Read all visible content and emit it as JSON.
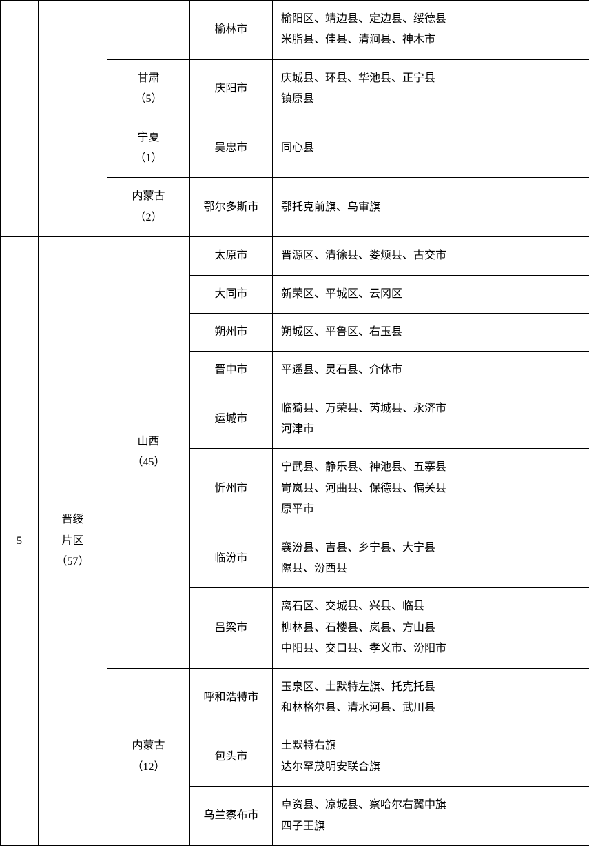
{
  "rows": [
    {
      "col1": "",
      "col1_rowspan": 4,
      "col2": "",
      "col2_rowspan": 4,
      "col3": "",
      "col3_rowspan": 1,
      "city": "榆林市",
      "counties": "榆阳区、靖边县、定边县、绥德县\n米脂县、佳县、清涧县、神木市"
    },
    {
      "col3": "甘肃\n（5）",
      "col3_rowspan": 1,
      "city": "庆阳市",
      "counties": "庆城县、环县、华池县、正宁县\n镇原县"
    },
    {
      "col3": "宁夏\n（1）",
      "col3_rowspan": 1,
      "city": "吴忠市",
      "counties": "同心县"
    },
    {
      "col3": "内蒙古\n（2）",
      "col3_rowspan": 1,
      "city": "鄂尔多斯市",
      "counties": "鄂托克前旗、乌审旗"
    },
    {
      "col1": "5",
      "col1_rowspan": 11,
      "col2": "晋绥\n片区\n（57）",
      "col2_rowspan": 11,
      "col3": "山西\n（45）",
      "col3_rowspan": 8,
      "city": "太原市",
      "counties": "晋源区、清徐县、娄烦县、古交市"
    },
    {
      "city": "大同市",
      "counties": "新荣区、平城区、云冈区"
    },
    {
      "city": "朔州市",
      "counties": "朔城区、平鲁区、右玉县"
    },
    {
      "city": "晋中市",
      "counties": "平遥县、灵石县、介休市"
    },
    {
      "city": "运城市",
      "counties": "临猗县、万荣县、芮城县、永济市\n河津市"
    },
    {
      "city": "忻州市",
      "counties": "宁武县、静乐县、神池县、五寨县\n岢岚县、河曲县、保德县、偏关县\n原平市"
    },
    {
      "city": "临汾市",
      "counties": "襄汾县、吉县、乡宁县、大宁县\n隰县、汾西县"
    },
    {
      "city": "吕梁市",
      "counties": "离石区、交城县、兴县、临县\n柳林县、石楼县、岚县、方山县\n中阳县、交口县、孝义市、汾阳市"
    },
    {
      "col3": "内蒙古\n（12）",
      "col3_rowspan": 3,
      "city": "呼和浩特市",
      "counties": "玉泉区、土默特左旗、托克托县\n和林格尔县、清水河县、武川县"
    },
    {
      "city": "包头市",
      "counties": "土默特右旗\n达尔罕茂明安联合旗"
    },
    {
      "city": "乌兰察布市",
      "counties": "卓资县、凉城县、察哈尔右翼中旗\n四子王旗"
    }
  ]
}
